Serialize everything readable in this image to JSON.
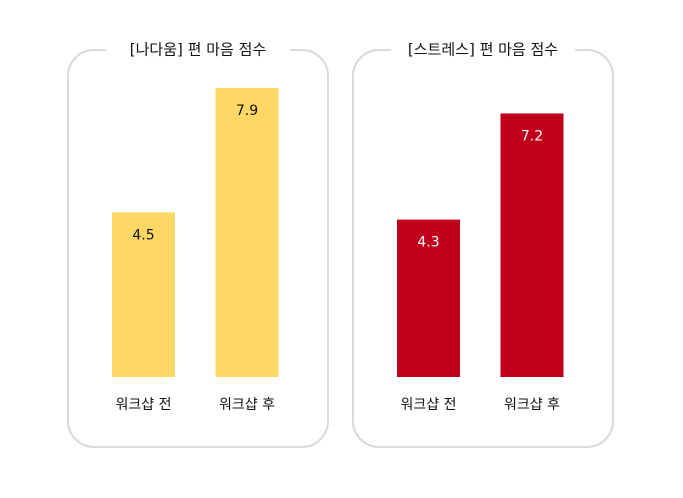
{
  "chart_data": [
    {
      "type": "bar",
      "title": "[나다움] 편 마음 점수",
      "categories": [
        "워크샵 전",
        "워크샵 후"
      ],
      "values": [
        4.5,
        7.9
      ],
      "color": "#fdd865",
      "label_color": "#111111"
    },
    {
      "type": "bar",
      "title": "[스트레스] 편 마음 점수",
      "categories": [
        "워크샵 전",
        "워크샵 후"
      ],
      "values": [
        4.3,
        7.2
      ],
      "color": "#c0001a",
      "label_color": "#ffffff"
    }
  ]
}
